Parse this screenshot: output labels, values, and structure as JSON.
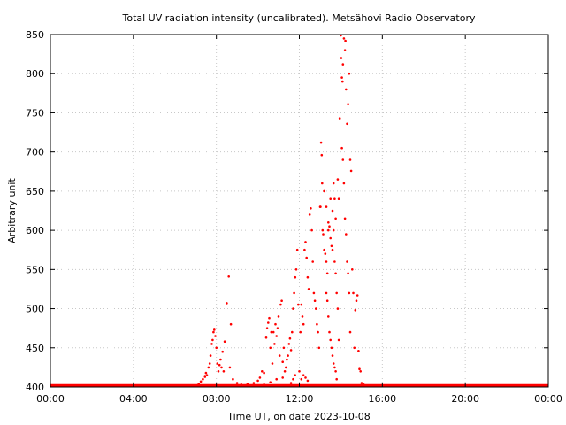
{
  "chart_data": {
    "type": "scatter",
    "title": "Total UV radiation intensity (uncalibrated). Metsähovi Radio Observatory",
    "xlabel": "Time UT, on date 2023-10-08",
    "ylabel": "Arbitrary unit",
    "x_unit": "hours UT",
    "xlim": [
      0,
      24
    ],
    "ylim": [
      400,
      850
    ],
    "x_ticks": [
      {
        "value": 0,
        "label": "00:00"
      },
      {
        "value": 4,
        "label": "04:00"
      },
      {
        "value": 8,
        "label": "08:00"
      },
      {
        "value": 12,
        "label": "12:00"
      },
      {
        "value": 16,
        "label": "16:00"
      },
      {
        "value": 20,
        "label": "20:00"
      },
      {
        "value": 24,
        "label": "00:00"
      }
    ],
    "y_ticks": [
      400,
      450,
      500,
      550,
      600,
      650,
      700,
      750,
      800,
      850
    ],
    "grid": true,
    "marker_color": "#ff0000",
    "baseline": {
      "value": 402,
      "x_start": 0.0,
      "x_end": 24.0,
      "note": "continuous dense points at the floor"
    },
    "points": [
      [
        7.05,
        402
      ],
      [
        7.15,
        404
      ],
      [
        7.25,
        407
      ],
      [
        7.35,
        410
      ],
      [
        7.45,
        413
      ],
      [
        7.5,
        418
      ],
      [
        7.55,
        415
      ],
      [
        7.62,
        425
      ],
      [
        7.68,
        430
      ],
      [
        7.72,
        440
      ],
      [
        7.78,
        455
      ],
      [
        7.82,
        460
      ],
      [
        7.86,
        470
      ],
      [
        7.9,
        473
      ],
      [
        7.95,
        465
      ],
      [
        8.0,
        450
      ],
      [
        8.05,
        430
      ],
      [
        8.1,
        420
      ],
      [
        8.15,
        428
      ],
      [
        8.2,
        435
      ],
      [
        8.25,
        425
      ],
      [
        8.3,
        445
      ],
      [
        8.35,
        420
      ],
      [
        8.4,
        458
      ],
      [
        8.5,
        507
      ],
      [
        8.6,
        541
      ],
      [
        8.65,
        425
      ],
      [
        8.7,
        480
      ],
      [
        8.8,
        410
      ],
      [
        9.0,
        405
      ],
      [
        9.2,
        403
      ],
      [
        9.5,
        404
      ],
      [
        9.8,
        405
      ],
      [
        10.0,
        408
      ],
      [
        10.1,
        412
      ],
      [
        10.2,
        420
      ],
      [
        10.3,
        418
      ],
      [
        10.4,
        463
      ],
      [
        10.45,
        475
      ],
      [
        10.5,
        482
      ],
      [
        10.55,
        488
      ],
      [
        10.6,
        450
      ],
      [
        10.65,
        470
      ],
      [
        10.7,
        430
      ],
      [
        10.75,
        470
      ],
      [
        10.8,
        455
      ],
      [
        10.85,
        480
      ],
      [
        10.9,
        465
      ],
      [
        10.95,
        475
      ],
      [
        11.0,
        490
      ],
      [
        11.05,
        440
      ],
      [
        11.1,
        505
      ],
      [
        11.15,
        510
      ],
      [
        11.2,
        432
      ],
      [
        11.25,
        450
      ],
      [
        11.3,
        420
      ],
      [
        11.35,
        425
      ],
      [
        11.4,
        435
      ],
      [
        11.45,
        440
      ],
      [
        11.5,
        455
      ],
      [
        11.55,
        462
      ],
      [
        11.6,
        447
      ],
      [
        11.65,
        470
      ],
      [
        11.7,
        500
      ],
      [
        11.75,
        520
      ],
      [
        11.8,
        540
      ],
      [
        11.85,
        550
      ],
      [
        11.9,
        575
      ],
      [
        11.95,
        505
      ],
      [
        12.0,
        420
      ],
      [
        12.05,
        470
      ],
      [
        12.1,
        505
      ],
      [
        12.15,
        490
      ],
      [
        12.2,
        480
      ],
      [
        12.25,
        575
      ],
      [
        12.3,
        585
      ],
      [
        12.35,
        565
      ],
      [
        12.4,
        540
      ],
      [
        12.45,
        525
      ],
      [
        12.5,
        620
      ],
      [
        12.55,
        628
      ],
      [
        12.6,
        600
      ],
      [
        12.65,
        560
      ],
      [
        12.7,
        520
      ],
      [
        12.75,
        510
      ],
      [
        12.8,
        500
      ],
      [
        12.85,
        480
      ],
      [
        12.9,
        470
      ],
      [
        12.95,
        450
      ],
      [
        13.0,
        630
      ],
      [
        13.02,
        630
      ],
      [
        13.05,
        712
      ],
      [
        13.08,
        696
      ],
      [
        13.1,
        660
      ],
      [
        13.12,
        600
      ],
      [
        13.15,
        595
      ],
      [
        13.2,
        575
      ],
      [
        13.25,
        570
      ],
      [
        13.3,
        560
      ],
      [
        13.35,
        545
      ],
      [
        13.4,
        600
      ],
      [
        13.45,
        605
      ],
      [
        13.5,
        590
      ],
      [
        13.55,
        580
      ],
      [
        13.6,
        575
      ],
      [
        13.65,
        600
      ],
      [
        13.7,
        560
      ],
      [
        13.75,
        545
      ],
      [
        13.8,
        520
      ],
      [
        13.85,
        500
      ],
      [
        13.9,
        460
      ],
      [
        13.95,
        743
      ],
      [
        14.0,
        849
      ],
      [
        14.02,
        820
      ],
      [
        14.05,
        795
      ],
      [
        14.08,
        790
      ],
      [
        14.1,
        812
      ],
      [
        14.15,
        845
      ],
      [
        14.2,
        830
      ],
      [
        14.22,
        842
      ],
      [
        14.25,
        780
      ],
      [
        14.3,
        736
      ],
      [
        14.35,
        761
      ],
      [
        14.4,
        800
      ],
      [
        14.45,
        690
      ],
      [
        14.5,
        676
      ],
      [
        14.55,
        550
      ],
      [
        14.6,
        520
      ],
      [
        14.65,
        450
      ],
      [
        14.7,
        498
      ],
      [
        14.75,
        510
      ],
      [
        14.8,
        517
      ],
      [
        14.85,
        446
      ],
      [
        14.9,
        423
      ],
      [
        14.95,
        420
      ],
      [
        15.0,
        405
      ],
      [
        15.1,
        403
      ],
      [
        13.3,
        520
      ],
      [
        13.35,
        510
      ],
      [
        13.4,
        490
      ],
      [
        13.45,
        470
      ],
      [
        13.5,
        460
      ],
      [
        13.55,
        450
      ],
      [
        13.6,
        440
      ],
      [
        13.65,
        430
      ],
      [
        13.7,
        425
      ],
      [
        13.75,
        420
      ],
      [
        13.8,
        410
      ],
      [
        12.1,
        410
      ],
      [
        12.2,
        415
      ],
      [
        12.3,
        412
      ],
      [
        12.4,
        408
      ],
      [
        11.6,
        405
      ],
      [
        11.7,
        410
      ],
      [
        11.8,
        415
      ],
      [
        10.3,
        403
      ],
      [
        10.6,
        406
      ],
      [
        10.9,
        410
      ],
      [
        11.2,
        412
      ],
      [
        13.2,
        650
      ],
      [
        13.3,
        630
      ],
      [
        13.4,
        610
      ],
      [
        13.5,
        640
      ],
      [
        13.6,
        625
      ],
      [
        13.65,
        660
      ],
      [
        13.7,
        640
      ],
      [
        13.75,
        615
      ],
      [
        13.85,
        665
      ],
      [
        13.9,
        640
      ],
      [
        14.05,
        705
      ],
      [
        14.1,
        690
      ],
      [
        14.15,
        660
      ],
      [
        14.2,
        615
      ],
      [
        14.25,
        595
      ],
      [
        14.3,
        560
      ],
      [
        14.35,
        545
      ],
      [
        14.4,
        520
      ],
      [
        14.45,
        470
      ]
    ]
  }
}
